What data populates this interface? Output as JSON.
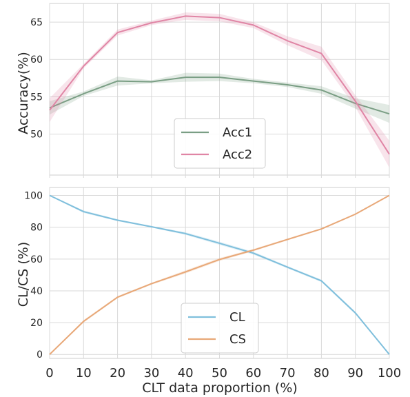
{
  "chart_data": [
    {
      "type": "line",
      "ylabel": "Accuracy(%)",
      "xlabel": "",
      "x": [
        0,
        10,
        20,
        30,
        40,
        50,
        60,
        70,
        80,
        90,
        100
      ],
      "xlim": [
        0,
        100
      ],
      "ylim": [
        44.5,
        67.5
      ],
      "yticks": [
        50,
        55,
        60,
        65
      ],
      "grid": true,
      "legend_position": "bottom-center",
      "series": [
        {
          "name": "Acc1",
          "color": "#7a9e84",
          "values": [
            53.5,
            55.4,
            57.1,
            57.0,
            57.6,
            57.6,
            57.1,
            56.6,
            55.9,
            54.1,
            52.7
          ],
          "band": [
            0.9,
            0.3,
            0.6,
            0.2,
            0.6,
            0.5,
            0.3,
            0.3,
            0.5,
            0.7,
            1.2
          ]
        },
        {
          "name": "Acc2",
          "color": "#e085a5",
          "values": [
            53.2,
            59.1,
            63.6,
            64.9,
            65.8,
            65.6,
            64.6,
            62.5,
            60.8,
            54.4,
            47.3
          ],
          "band": [
            1.6,
            0.3,
            0.4,
            0.3,
            0.5,
            0.5,
            0.4,
            0.6,
            0.9,
            0.8,
            1.8
          ]
        }
      ]
    },
    {
      "type": "line",
      "ylabel": "CL/CS (%)",
      "xlabel": "CLT data proportion (%)",
      "x": [
        0,
        10,
        20,
        30,
        40,
        50,
        60,
        70,
        80,
        90,
        100
      ],
      "xticks": [
        "0",
        "10",
        "20",
        "30",
        "40",
        "50",
        "60",
        "70",
        "80",
        "90",
        "100"
      ],
      "xlim": [
        0,
        100
      ],
      "ylim": [
        -2.5,
        105
      ],
      "yticks": [
        0,
        20,
        40,
        60,
        80,
        100
      ],
      "grid": true,
      "legend_position": "bottom-center",
      "series": [
        {
          "name": "CL",
          "color": "#7fbfdc",
          "values": [
            100,
            89.8,
            84.4,
            80.3,
            76.0,
            69.9,
            63.7,
            54.9,
            46.3,
            26.1,
            0
          ],
          "band": [
            0.3,
            0.8,
            0.6,
            0.5,
            0.8,
            1.0,
            0.9,
            0.7,
            0.8,
            0.8,
            0.3
          ]
        },
        {
          "name": "CS",
          "color": "#e8a878",
          "values": [
            0,
            20.8,
            36.0,
            44.5,
            51.9,
            59.7,
            65.6,
            72.3,
            78.9,
            88.2,
            100
          ],
          "band": [
            0.3,
            0.8,
            0.7,
            0.6,
            1.0,
            0.9,
            0.7,
            0.6,
            0.5,
            0.4,
            0.3
          ]
        }
      ]
    }
  ]
}
